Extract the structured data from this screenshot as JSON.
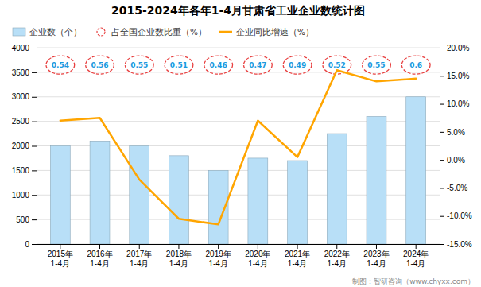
{
  "chart_data": {
    "type": "bar",
    "title": "2015-2024年各年1-4月甘肃省工业企业数统计图",
    "categories": [
      "2015年\n1-4月",
      "2016年\n1-4月",
      "2017年\n1-4月",
      "2018年\n1-4月",
      "2019年\n1-4月",
      "2020年\n1-4月",
      "2021年\n1-4月",
      "2022年\n1-4月",
      "2023年\n1-4月",
      "2024年\n1-4月"
    ],
    "series": [
      {
        "name": "企业数（个）",
        "type": "bar",
        "color": "#b8dff7",
        "values": [
          2000,
          2100,
          2000,
          1800,
          1500,
          1750,
          1700,
          2250,
          2600,
          3000
        ]
      },
      {
        "name": "占全国企业数比重（%）",
        "color": "#e84040",
        "marker": "circle",
        "line_style": "dashed",
        "data_labels": true,
        "values": [
          0.54,
          0.56,
          0.55,
          0.51,
          0.46,
          0.47,
          0.49,
          0.52,
          0.55,
          0.6
        ]
      },
      {
        "name": "企业同比增速（%）",
        "type": "line",
        "color": "#FFA500",
        "axis": "y2",
        "values": [
          7.0,
          7.5,
          -3.5,
          -10.5,
          -11.5,
          7.0,
          0.5,
          16.0,
          14.0,
          14.5
        ]
      }
    ],
    "ylim": [
      0,
      4000
    ],
    "yticks": [
      0,
      500,
      1000,
      1500,
      2000,
      2500,
      3000,
      3500,
      4000
    ],
    "y2lim": [
      -15,
      20
    ],
    "y2ticks": [
      {
        "value": -15.0,
        "label": "-15.0%"
      },
      {
        "value": -10.0,
        "label": "-10.0%"
      },
      {
        "value": -5.0,
        "label": "-5.0%"
      },
      {
        "value": 0.0,
        "label": "0.0%"
      },
      {
        "value": 5.0,
        "label": "5.0%"
      },
      {
        "value": 10.0,
        "label": "10.0%"
      },
      {
        "value": 15.0,
        "label": "15.0%"
      },
      {
        "value": 20.0,
        "label": "20.0%"
      }
    ],
    "grid": true,
    "legend": "upper left",
    "annotations": [
      "制图：智研咨询（www.chyxx.com）"
    ]
  }
}
